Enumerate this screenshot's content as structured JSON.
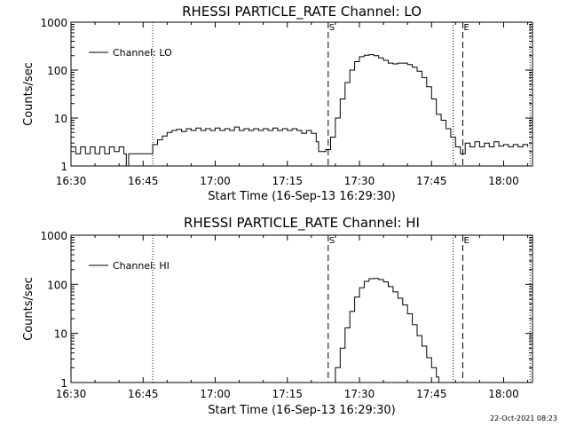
{
  "footer": {
    "timestamp": "22-Oct-2021 08:23"
  },
  "chart_data": [
    {
      "type": "line",
      "scale_y": "log",
      "title": "RHESSI PARTICLE_RATE Channel: LO",
      "xlabel": "Start Time (16-Sep-13 16:29:30)",
      "ylabel": "Counts/sec",
      "xlim": [
        "16:30",
        "18:06"
      ],
      "ylim": [
        1,
        1000
      ],
      "x_ticks": [
        "16:30",
        "16:45",
        "17:00",
        "17:15",
        "17:30",
        "17:45",
        "18:00"
      ],
      "y_ticks": [
        "1",
        "10",
        "100",
        "1000"
      ],
      "legend": {
        "label": "Channel: LO",
        "position": "top-left"
      },
      "markers": [
        {
          "label": "S",
          "time": "17:23.5",
          "style": "dashed"
        },
        {
          "label": "E",
          "time": "17:51.5",
          "style": "dashed"
        }
      ],
      "dotted_lines": [
        "16:47",
        "17:49.5",
        "18:05.5"
      ],
      "series": [
        {
          "x": [
            "16:30",
            "16:31",
            "16:32",
            "16:33",
            "16:34",
            "16:35",
            "16:36",
            "16:37",
            "16:38",
            "16:39",
            "16:40",
            "16:41",
            "16:41.5",
            "16:42",
            "16:44",
            "16:46",
            "16:47",
            "16:48",
            "16:49",
            "16:50",
            "16:51",
            "16:52",
            "16:53",
            "16:54",
            "16:55",
            "16:56",
            "16:57",
            "16:58",
            "16:59",
            "17:00",
            "17:01",
            "17:02",
            "17:03",
            "17:04",
            "17:05",
            "17:06",
            "17:07",
            "17:08",
            "17:09",
            "17:10",
            "17:11",
            "17:12",
            "17:13",
            "17:14",
            "17:15",
            "17:16",
            "17:17",
            "17:18",
            "17:19",
            "17:20",
            "17:21",
            "17:21.5",
            "17:22",
            "17:23",
            "17:24",
            "17:25",
            "17:26",
            "17:27",
            "17:28",
            "17:29",
            "17:30",
            "17:31",
            "17:32",
            "17:33",
            "17:34",
            "17:35",
            "17:36",
            "17:37",
            "17:38",
            "17:39",
            "17:40",
            "17:41",
            "17:42",
            "17:43",
            "17:44",
            "17:45",
            "17:46",
            "17:47",
            "17:48",
            "17:49",
            "17:50",
            "17:51",
            "17:52",
            "17:53",
            "17:54",
            "17:55",
            "17:56",
            "17:57",
            "17:58",
            "17:59",
            "18:00",
            "18:01",
            "18:02",
            "18:03",
            "18:04",
            "18:05"
          ],
          "values": [
            2.5,
            1.8,
            2.5,
            1.8,
            2.5,
            1.8,
            2.5,
            1.8,
            2.5,
            2.0,
            2.5,
            1.8,
            1.0,
            1.8,
            1.8,
            1.8,
            2.8,
            3.5,
            4.2,
            5.0,
            5.5,
            5.8,
            5.2,
            6.0,
            5.5,
            6.2,
            5.5,
            6.0,
            5.5,
            6.2,
            5.5,
            6.0,
            5.5,
            6.5,
            5.5,
            6.0,
            5.5,
            6.0,
            5.5,
            6.0,
            5.5,
            6.2,
            5.5,
            6.0,
            5.5,
            6.0,
            5.5,
            4.8,
            5.5,
            4.8,
            3.2,
            2.0,
            2.0,
            2.2,
            4.0,
            10,
            25,
            55,
            100,
            150,
            190,
            205,
            210,
            200,
            180,
            160,
            140,
            135,
            140,
            140,
            130,
            115,
            95,
            70,
            45,
            25,
            12,
            9,
            6,
            4,
            2.5,
            1.8,
            3,
            2.5,
            3.2,
            2.5,
            3.0,
            2.5,
            3.2,
            2.6,
            2.8,
            2.5,
            2.8,
            2.5,
            2.8,
            2.5
          ]
        }
      ]
    },
    {
      "type": "line",
      "scale_y": "log",
      "title": "RHESSI PARTICLE_RATE Channel: HI",
      "xlabel": "Start Time (16-Sep-13 16:29:30)",
      "ylabel": "Counts/sec",
      "xlim": [
        "16:30",
        "18:06"
      ],
      "ylim": [
        1,
        1000
      ],
      "x_ticks": [
        "16:30",
        "16:45",
        "17:00",
        "17:15",
        "17:30",
        "17:45",
        "18:00"
      ],
      "y_ticks": [
        "1",
        "10",
        "100",
        "1000"
      ],
      "legend": {
        "label": "Channel: HI",
        "position": "top-left"
      },
      "markers": [
        {
          "label": "S",
          "time": "17:23.5",
          "style": "dashed"
        },
        {
          "label": "E",
          "time": "17:51.5",
          "style": "dashed"
        }
      ],
      "dotted_lines": [
        "16:47",
        "17:49.5",
        "18:05.5"
      ],
      "series": [
        {
          "x": [
            "17:24",
            "17:25",
            "17:26",
            "17:27",
            "17:28",
            "17:29",
            "17:30",
            "17:31",
            "17:32",
            "17:33",
            "17:34",
            "17:35",
            "17:36",
            "17:37",
            "17:38",
            "17:39",
            "17:40",
            "17:41",
            "17:42",
            "17:43",
            "17:44",
            "17:45",
            "17:46",
            "17:46.5"
          ],
          "values": [
            1.0,
            2.0,
            5.0,
            13,
            28,
            55,
            85,
            115,
            130,
            132,
            125,
            112,
            90,
            70,
            52,
            38,
            25,
            15,
            9,
            5.5,
            3.2,
            2.0,
            1.3,
            1.0
          ]
        }
      ]
    }
  ]
}
